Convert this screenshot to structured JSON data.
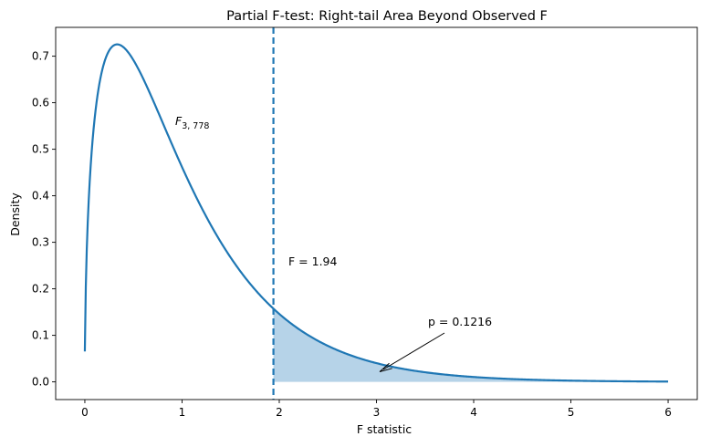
{
  "chart_data": {
    "type": "line",
    "title": "Partial F-test: Right-tail Area Beyond Observed F",
    "xlabel": "F statistic",
    "ylabel": "Density",
    "xlim": [
      -0.3,
      6.3
    ],
    "ylim": [
      -0.038,
      0.762
    ],
    "xticks": [
      0,
      1,
      2,
      3,
      4,
      5,
      6
    ],
    "yticks": [
      0.0,
      0.1,
      0.2,
      0.3,
      0.4,
      0.5,
      0.6,
      0.7
    ],
    "grid": false,
    "distribution": {
      "name": "F",
      "df1": 3,
      "df2": 778,
      "x_range": [
        0,
        6
      ]
    },
    "series": [
      {
        "x": [
          0.0,
          0.02,
          0.05,
          0.1,
          0.2,
          0.3,
          0.33,
          0.4,
          0.5,
          0.6,
          0.8,
          1.0,
          1.2,
          1.5,
          1.8,
          1.94,
          2.0,
          2.5,
          3.0,
          3.5,
          4.0,
          4.5,
          5.0,
          5.5,
          6.0
        ],
        "y": [
          0.065,
          0.36,
          0.52,
          0.64,
          0.71,
          0.725,
          0.725,
          0.72,
          0.695,
          0.66,
          0.575,
          0.482,
          0.395,
          0.285,
          0.196,
          0.155,
          0.145,
          0.087,
          0.046,
          0.026,
          0.014,
          0.008,
          0.004,
          0.002,
          0.001
        ]
      }
    ],
    "observed_F": 1.94,
    "p_value": 0.1216,
    "annotations": {
      "curve_label_base": "F",
      "curve_label_sub": "3, 778",
      "observed_label": "F = 1.94",
      "p_label": "p = 0.1216"
    },
    "colors": {
      "line": "#1f77b4",
      "fill": "#b6d3e8",
      "text": "#000000"
    }
  }
}
